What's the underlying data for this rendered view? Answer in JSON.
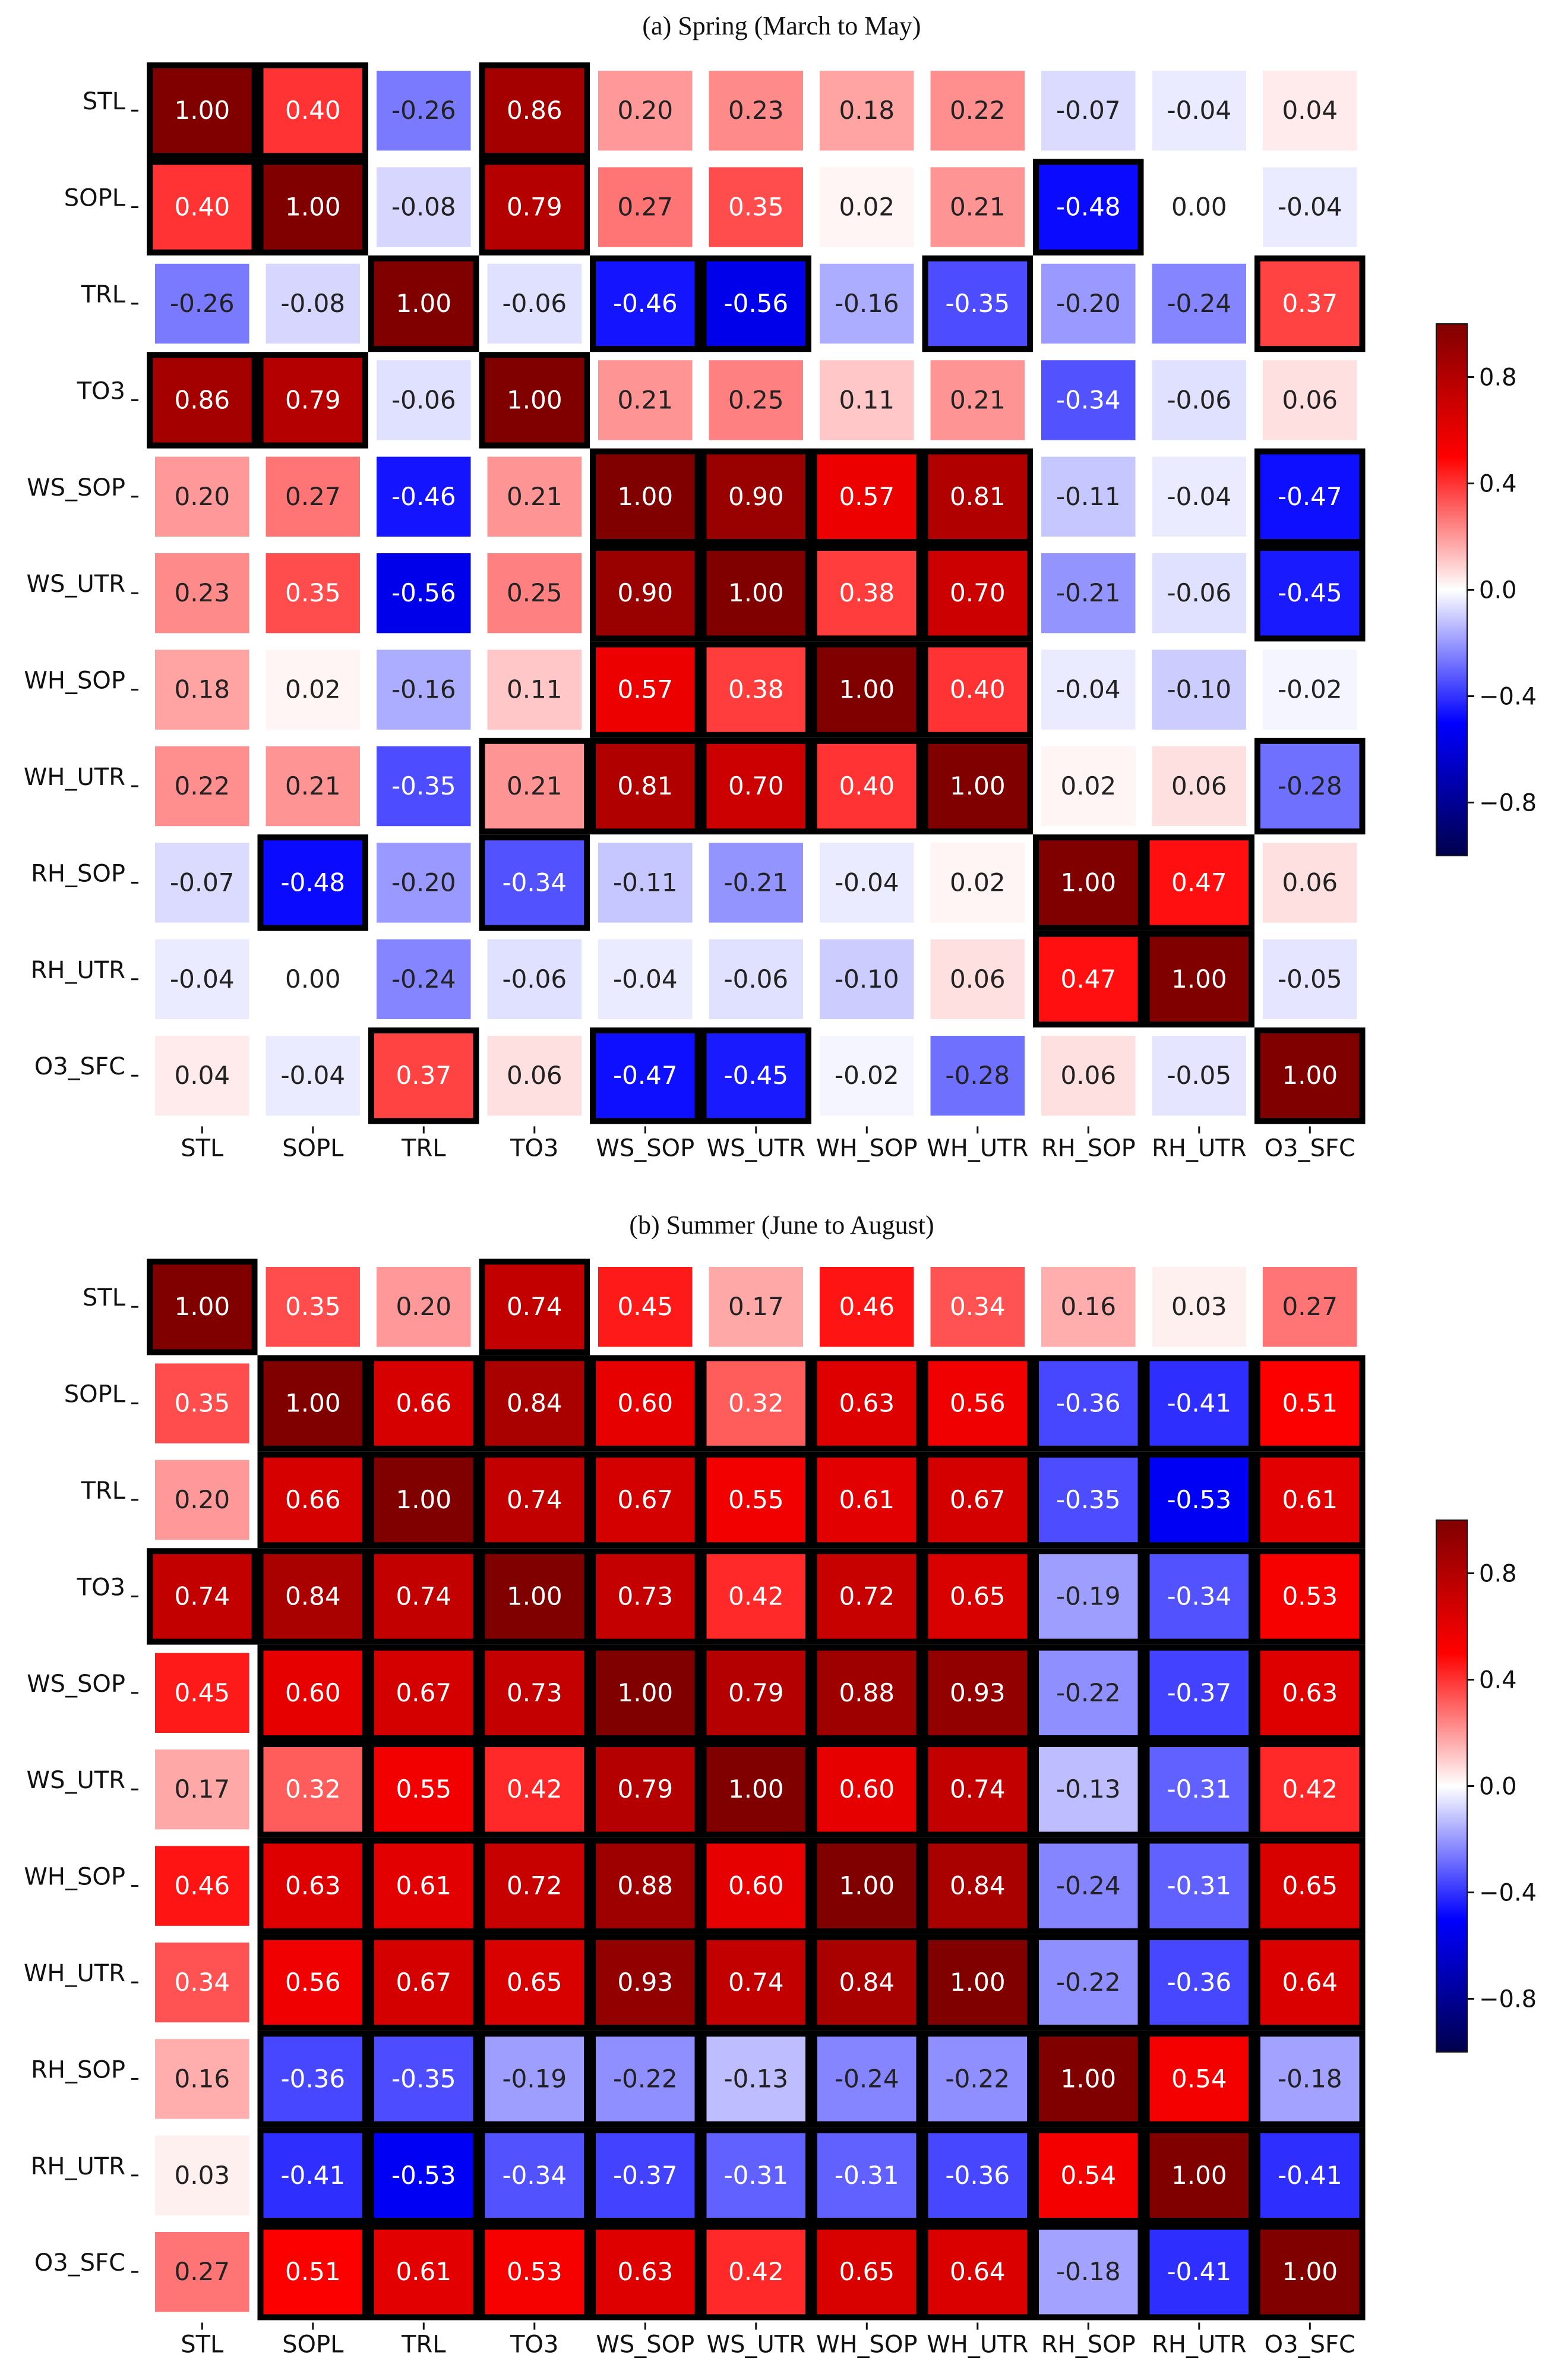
{
  "chart_data": [
    {
      "type": "heatmap",
      "title": "(a) Spring (March to May)",
      "variables": [
        "STL",
        "SOPL",
        "TRL",
        "TO3",
        "WS_SOP",
        "WS_UTR",
        "WH_SOP",
        "WH_UTR",
        "RH_SOP",
        "RH_UTR",
        "O3_SFC"
      ],
      "x_tick_labels": [
        "STL",
        "SOPL",
        "TRL",
        "TO3",
        "WS_SOP",
        "WS_UTR",
        "WH_SOP",
        "WH_UTR",
        "RH_SOP",
        "RH_UTR",
        "O3_SFC"
      ],
      "y_tick_labels": [
        "STL",
        "SOPL",
        "TRL",
        "TO3",
        "WS_SOP",
        "WS_UTR",
        "WH_SOP",
        "WH_UTR",
        "RH_SOP",
        "RH_UTR",
        "O3_SFC"
      ],
      "value_labels": [
        [
          "1.00",
          "0.40",
          "-0.26",
          "0.86",
          "0.20",
          "0.23",
          "0.18",
          "0.22",
          "-0.07",
          "-0.04",
          "0.04"
        ],
        [
          "0.40",
          "1.00",
          "-0.08",
          "0.79",
          "0.27",
          "0.35",
          "0.02",
          "0.21",
          "-0.48",
          "0.00",
          "-0.04"
        ],
        [
          "-0.26",
          "-0.08",
          "1.00",
          "-0.06",
          "-0.46",
          "-0.56",
          "-0.16",
          "-0.35",
          "-0.20",
          "-0.24",
          "0.37"
        ],
        [
          "0.86",
          "0.79",
          "-0.06",
          "1.00",
          "0.21",
          "0.25",
          "0.11",
          "0.21",
          "-0.34",
          "-0.06",
          "0.06"
        ],
        [
          "0.20",
          "0.27",
          "-0.46",
          "0.21",
          "1.00",
          "0.90",
          "0.57",
          "0.81",
          "-0.11",
          "-0.04",
          "-0.47"
        ],
        [
          "0.23",
          "0.35",
          "-0.56",
          "0.25",
          "0.90",
          "1.00",
          "0.38",
          "0.70",
          "-0.21",
          "-0.06",
          "-0.45"
        ],
        [
          "0.18",
          "0.02",
          "-0.16",
          "0.11",
          "0.57",
          "0.38",
          "1.00",
          "0.40",
          "-0.04",
          "-0.10",
          "-0.02"
        ],
        [
          "0.22",
          "0.21",
          "-0.35",
          "0.21",
          "0.81",
          "0.70",
          "0.40",
          "1.00",
          "0.02",
          "0.06",
          "-0.28"
        ],
        [
          "-0.07",
          "-0.48",
          "-0.20",
          "-0.34",
          "-0.11",
          "-0.21",
          "-0.04",
          "0.02",
          "1.00",
          "0.47",
          "0.06"
        ],
        [
          "-0.04",
          "0.00",
          "-0.24",
          "-0.06",
          "-0.04",
          "-0.06",
          "-0.10",
          "0.06",
          "0.47",
          "1.00",
          "-0.05"
        ],
        [
          "0.04",
          "-0.04",
          "0.37",
          "0.06",
          "-0.47",
          "-0.45",
          "-0.02",
          "-0.28",
          "0.06",
          "-0.05",
          "1.00"
        ]
      ],
      "highlighted_cells": [
        [
          0,
          0
        ],
        [
          0,
          1
        ],
        [
          0,
          3
        ],
        [
          1,
          0
        ],
        [
          1,
          1
        ],
        [
          1,
          3
        ],
        [
          1,
          8
        ],
        [
          2,
          2
        ],
        [
          2,
          4
        ],
        [
          2,
          5
        ],
        [
          2,
          7
        ],
        [
          2,
          10
        ],
        [
          3,
          0
        ],
        [
          3,
          1
        ],
        [
          3,
          3
        ],
        [
          4,
          4
        ],
        [
          4,
          5
        ],
        [
          4,
          6
        ],
        [
          4,
          7
        ],
        [
          4,
          10
        ],
        [
          5,
          4
        ],
        [
          5,
          5
        ],
        [
          5,
          6
        ],
        [
          5,
          7
        ],
        [
          5,
          10
        ],
        [
          6,
          4
        ],
        [
          6,
          5
        ],
        [
          6,
          6
        ],
        [
          6,
          7
        ],
        [
          7,
          3
        ],
        [
          7,
          4
        ],
        [
          7,
          5
        ],
        [
          7,
          6
        ],
        [
          7,
          7
        ],
        [
          7,
          10
        ],
        [
          8,
          1
        ],
        [
          8,
          3
        ],
        [
          8,
          8
        ],
        [
          8,
          9
        ],
        [
          9,
          8
        ],
        [
          9,
          9
        ],
        [
          10,
          2
        ],
        [
          10,
          4
        ],
        [
          10,
          5
        ],
        [
          10,
          10
        ]
      ],
      "color_range": [
        -1,
        1
      ],
      "colormap": "seismic",
      "colorbar_ticks": [
        "0.8",
        "0.4",
        "0.0",
        "−0.4",
        "−0.8"
      ],
      "colorbar_tick_values": [
        0.8,
        0.4,
        0.0,
        -0.4,
        -0.8
      ]
    },
    {
      "type": "heatmap",
      "title": "(b) Summer (June to August)",
      "variables": [
        "STL",
        "SOPL",
        "TRL",
        "TO3",
        "WS_SOP",
        "WS_UTR",
        "WH_SOP",
        "WH_UTR",
        "RH_SOP",
        "RH_UTR",
        "O3_SFC"
      ],
      "x_tick_labels": [
        "STL",
        "SOPL",
        "TRL",
        "TO3",
        "WS_SOP",
        "WS_UTR",
        "WH_SOP",
        "WH_UTR",
        "RH_SOP",
        "RH_UTR",
        "O3_SFC"
      ],
      "y_tick_labels": [
        "STL",
        "SOPL",
        "TRL",
        "TO3",
        "WS_SOP",
        "WS_UTR",
        "WH_SOP",
        "WH_UTR",
        "RH_SOP",
        "RH_UTR",
        "O3_SFC"
      ],
      "value_labels": [
        [
          "1.00",
          "0.35",
          "0.20",
          "0.74",
          "0.45",
          "0.17",
          "0.46",
          "0.34",
          "0.16",
          "0.03",
          "0.27"
        ],
        [
          "0.35",
          "1.00",
          "0.66",
          "0.84",
          "0.60",
          "0.32",
          "0.63",
          "0.56",
          "-0.36",
          "-0.41",
          "0.51"
        ],
        [
          "0.20",
          "0.66",
          "1.00",
          "0.74",
          "0.67",
          "0.55",
          "0.61",
          "0.67",
          "-0.35",
          "-0.53",
          "0.61"
        ],
        [
          "0.74",
          "0.84",
          "0.74",
          "1.00",
          "0.73",
          "0.42",
          "0.72",
          "0.65",
          "-0.19",
          "-0.34",
          "0.53"
        ],
        [
          "0.45",
          "0.60",
          "0.67",
          "0.73",
          "1.00",
          "0.79",
          "0.88",
          "0.93",
          "-0.22",
          "-0.37",
          "0.63"
        ],
        [
          "0.17",
          "0.32",
          "0.55",
          "0.42",
          "0.79",
          "1.00",
          "0.60",
          "0.74",
          "-0.13",
          "-0.31",
          "0.42"
        ],
        [
          "0.46",
          "0.63",
          "0.61",
          "0.72",
          "0.88",
          "0.60",
          "1.00",
          "0.84",
          "-0.24",
          "-0.31",
          "0.65"
        ],
        [
          "0.34",
          "0.56",
          "0.67",
          "0.65",
          "0.93",
          "0.74",
          "0.84",
          "1.00",
          "-0.22",
          "-0.36",
          "0.64"
        ],
        [
          "0.16",
          "-0.36",
          "-0.35",
          "-0.19",
          "-0.22",
          "-0.13",
          "-0.24",
          "-0.22",
          "1.00",
          "0.54",
          "-0.18"
        ],
        [
          "0.03",
          "-0.41",
          "-0.53",
          "-0.34",
          "-0.37",
          "-0.31",
          "-0.31",
          "-0.36",
          "0.54",
          "1.00",
          "-0.41"
        ],
        [
          "0.27",
          "0.51",
          "0.61",
          "0.53",
          "0.63",
          "0.42",
          "0.65",
          "0.64",
          "-0.18",
          "-0.41",
          "1.00"
        ]
      ],
      "highlighted_cells": [
        [
          0,
          0
        ],
        [
          0,
          3
        ],
        [
          3,
          0
        ],
        [
          1,
          1
        ],
        [
          1,
          2
        ],
        [
          1,
          3
        ],
        [
          1,
          4
        ],
        [
          1,
          5
        ],
        [
          1,
          6
        ],
        [
          1,
          7
        ],
        [
          1,
          8
        ],
        [
          1,
          9
        ],
        [
          1,
          10
        ],
        [
          2,
          1
        ],
        [
          2,
          2
        ],
        [
          2,
          3
        ],
        [
          2,
          4
        ],
        [
          2,
          5
        ],
        [
          2,
          6
        ],
        [
          2,
          7
        ],
        [
          2,
          8
        ],
        [
          2,
          9
        ],
        [
          2,
          10
        ],
        [
          3,
          1
        ],
        [
          3,
          2
        ],
        [
          3,
          3
        ],
        [
          3,
          4
        ],
        [
          3,
          5
        ],
        [
          3,
          6
        ],
        [
          3,
          7
        ],
        [
          3,
          8
        ],
        [
          3,
          9
        ],
        [
          3,
          10
        ],
        [
          4,
          1
        ],
        [
          4,
          2
        ],
        [
          4,
          3
        ],
        [
          4,
          4
        ],
        [
          4,
          5
        ],
        [
          4,
          6
        ],
        [
          4,
          7
        ],
        [
          4,
          8
        ],
        [
          4,
          9
        ],
        [
          4,
          10
        ],
        [
          5,
          1
        ],
        [
          5,
          2
        ],
        [
          5,
          3
        ],
        [
          5,
          4
        ],
        [
          5,
          5
        ],
        [
          5,
          6
        ],
        [
          5,
          7
        ],
        [
          5,
          8
        ],
        [
          5,
          9
        ],
        [
          5,
          10
        ],
        [
          6,
          1
        ],
        [
          6,
          2
        ],
        [
          6,
          3
        ],
        [
          6,
          4
        ],
        [
          6,
          5
        ],
        [
          6,
          6
        ],
        [
          6,
          7
        ],
        [
          6,
          8
        ],
        [
          6,
          9
        ],
        [
          6,
          10
        ],
        [
          7,
          1
        ],
        [
          7,
          2
        ],
        [
          7,
          3
        ],
        [
          7,
          4
        ],
        [
          7,
          5
        ],
        [
          7,
          6
        ],
        [
          7,
          7
        ],
        [
          7,
          8
        ],
        [
          7,
          9
        ],
        [
          7,
          10
        ],
        [
          8,
          1
        ],
        [
          8,
          2
        ],
        [
          8,
          3
        ],
        [
          8,
          4
        ],
        [
          8,
          5
        ],
        [
          8,
          6
        ],
        [
          8,
          7
        ],
        [
          8,
          8
        ],
        [
          8,
          9
        ],
        [
          8,
          10
        ],
        [
          9,
          1
        ],
        [
          9,
          2
        ],
        [
          9,
          3
        ],
        [
          9,
          4
        ],
        [
          9,
          5
        ],
        [
          9,
          6
        ],
        [
          9,
          7
        ],
        [
          9,
          8
        ],
        [
          9,
          9
        ],
        [
          9,
          10
        ],
        [
          10,
          1
        ],
        [
          10,
          2
        ],
        [
          10,
          3
        ],
        [
          10,
          4
        ],
        [
          10,
          5
        ],
        [
          10,
          6
        ],
        [
          10,
          7
        ],
        [
          10,
          8
        ],
        [
          10,
          9
        ],
        [
          10,
          10
        ]
      ],
      "color_range": [
        -1,
        1
      ],
      "colormap": "seismic",
      "colorbar_ticks": [
        "0.8",
        "0.4",
        "0.0",
        "−0.4",
        "−0.8"
      ],
      "colorbar_tick_values": [
        0.8,
        0.4,
        0.0,
        -0.4,
        -0.8
      ]
    }
  ]
}
